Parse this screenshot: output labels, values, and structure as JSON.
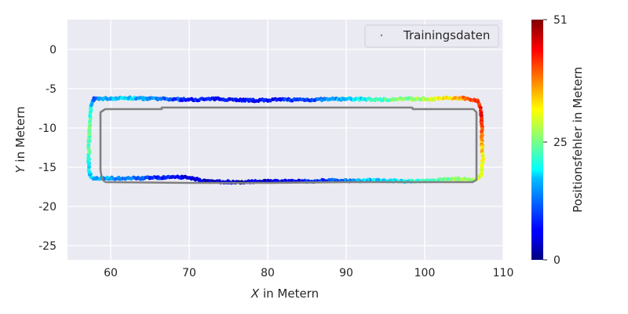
{
  "chart_data": {
    "type": "scatter",
    "title": "",
    "xlabel_var": "X",
    "xlabel_rest": " in Metern",
    "ylabel_var": "Y",
    "ylabel_rest": " in Metern",
    "xlim": [
      54.5,
      110
    ],
    "ylim": [
      -26.8,
      3.8
    ],
    "xticks": [
      60,
      70,
      80,
      90,
      100,
      110
    ],
    "yticks": [
      0,
      -5,
      -10,
      -15,
      -20,
      -25
    ],
    "grid": true,
    "legend": {
      "placement": "top-right",
      "entries": [
        "Trainingsdaten"
      ]
    },
    "colorbar": {
      "label": "Positionsfehler in Metern",
      "min": 0,
      "max": 51,
      "ticks": [
        0,
        25,
        51
      ],
      "colormap": "jet"
    },
    "series": [
      {
        "name": "Trainingsdaten",
        "color": "#808080",
        "path": [
          [
            59.3,
            -16.9
          ],
          [
            70,
            -17.0
          ],
          [
            80,
            -17.0
          ],
          [
            90,
            -16.9
          ],
          [
            100,
            -16.9
          ],
          [
            106.1,
            -16.9
          ],
          [
            106.6,
            -16.6
          ],
          [
            106.6,
            -8.0
          ],
          [
            106.2,
            -7.6
          ],
          [
            98.5,
            -7.6
          ],
          [
            98.4,
            -7.4
          ],
          [
            80,
            -7.4
          ],
          [
            66.5,
            -7.4
          ],
          [
            66.5,
            -7.6
          ],
          [
            59.3,
            -7.6
          ],
          [
            58.7,
            -8.0
          ],
          [
            58.7,
            -15.4
          ],
          [
            58.9,
            -16.5
          ],
          [
            59.3,
            -16.9
          ]
        ]
      },
      {
        "name": "Positionsfehler",
        "anchors": [
          [
            57.9,
            -6.3,
            12
          ],
          [
            62,
            -6.2,
            18
          ],
          [
            66,
            -6.3,
            12
          ],
          [
            70,
            -6.4,
            8
          ],
          [
            74,
            -6.3,
            6
          ],
          [
            78,
            -6.5,
            6
          ],
          [
            82,
            -6.4,
            8
          ],
          [
            86,
            -6.4,
            10
          ],
          [
            90,
            -6.3,
            16
          ],
          [
            94,
            -6.4,
            22
          ],
          [
            98,
            -6.3,
            26
          ],
          [
            101,
            -6.3,
            30
          ],
          [
            103,
            -6.2,
            33
          ],
          [
            105,
            -6.2,
            38
          ],
          [
            106.8,
            -6.5,
            42
          ],
          [
            107.2,
            -8,
            45
          ],
          [
            107.3,
            -10,
            40
          ],
          [
            107.3,
            -12,
            36
          ],
          [
            107.4,
            -14,
            32
          ],
          [
            107.2,
            -16,
            30
          ],
          [
            106.5,
            -16.6,
            28
          ],
          [
            104,
            -16.5,
            26
          ],
          [
            101,
            -16.7,
            22
          ],
          [
            98,
            -16.8,
            20
          ],
          [
            95,
            -16.7,
            18
          ],
          [
            92,
            -16.7,
            16
          ],
          [
            88,
            -16.7,
            10
          ],
          [
            84,
            -16.8,
            7
          ],
          [
            80,
            -16.8,
            4
          ],
          [
            76,
            -16.9,
            3
          ],
          [
            72,
            -16.8,
            4
          ],
          [
            70,
            -16.3,
            5
          ],
          [
            68,
            -16.3,
            6
          ],
          [
            64,
            -16.4,
            10
          ],
          [
            60,
            -16.4,
            14
          ],
          [
            57.6,
            -16.4,
            16
          ],
          [
            57.2,
            -15.5,
            18
          ],
          [
            57.2,
            -13,
            22
          ],
          [
            57.3,
            -10,
            26
          ],
          [
            57.4,
            -8,
            22
          ],
          [
            57.6,
            -6.8,
            16
          ],
          [
            57.9,
            -6.3,
            12
          ]
        ]
      }
    ]
  }
}
